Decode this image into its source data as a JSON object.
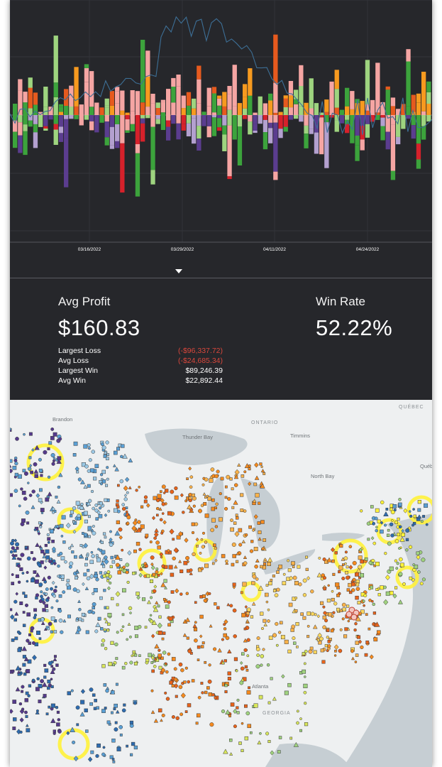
{
  "chart_data": {
    "type": "bar",
    "x_tick_labels": [
      "03/16/2022",
      "03/29/2022",
      "04/11/2022",
      "04/24/2022"
    ],
    "stack_colors": [
      "#e65a1e",
      "#f79a1f",
      "#f5a5a3",
      "#9ed47f",
      "#3ca33c",
      "#d6212b",
      "#b3a0cf",
      "#5b3d8f"
    ],
    "line_color": "#3d6f96",
    "grid": true
  },
  "stats": {
    "avg_profit_label": "Avg Profit",
    "avg_profit_value": "$160.83",
    "win_rate_label": "Win Rate",
    "win_rate_value": "52.22%",
    "rows": [
      {
        "label": "Largest Loss",
        "value": "(-$96,337.72)"
      },
      {
        "label": "Avg Loss",
        "value": "(-$24,685.34)"
      },
      {
        "label": "Largest Win",
        "value": "$89,246.39"
      },
      {
        "label": "Avg Win",
        "value": "$22,892.44"
      }
    ]
  },
  "map": {
    "labels": {
      "brandon": "Brandon",
      "ontario": "ONTARIO",
      "quebec": "QUÉBEC",
      "thunder_bay": "Thunder Bay",
      "timmins": "Timmins",
      "north_bay": "North Bay",
      "quebec_city": "Québec",
      "atlanta": "Atlanta",
      "georgia": "GEORGIA"
    },
    "region_colors": [
      "#553a8c",
      "#2e6cb0",
      "#5a9fd4",
      "#9bc9e6",
      "#9fd27e",
      "#d8e65a",
      "#fff23a",
      "#fcd75c",
      "#f9b24a",
      "#f58a1e",
      "#e8631a"
    ]
  }
}
